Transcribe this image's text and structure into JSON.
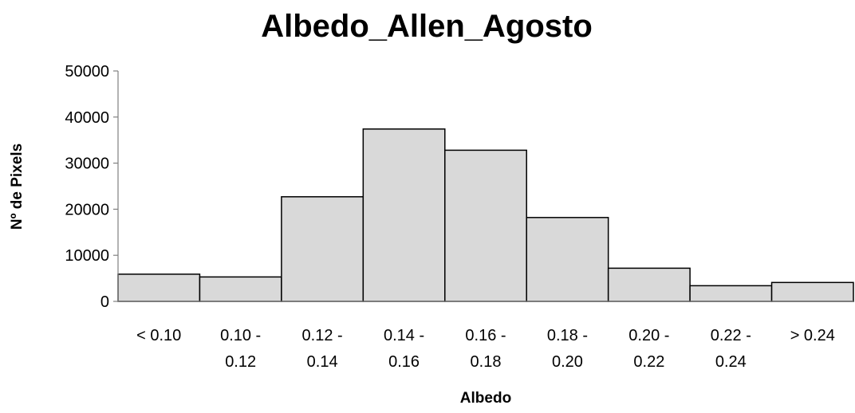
{
  "chart_data": {
    "type": "bar",
    "title": "Albedo_Allen_Agosto",
    "xlabel": "Albedo",
    "ylabel": "Nº de Pixels",
    "categories": [
      [
        "< 0.10"
      ],
      [
        "0.10 -",
        "0.12"
      ],
      [
        "0.12 -",
        "0.14"
      ],
      [
        "0.14 -",
        "0.16"
      ],
      [
        "0.16 -",
        "0.18"
      ],
      [
        "0.18 -",
        "0.20"
      ],
      [
        "0.20 -",
        "0.22"
      ],
      [
        "0.22 -",
        "0.24"
      ],
      [
        "> 0.24"
      ]
    ],
    "values": [
      5900,
      5300,
      22700,
      37400,
      32800,
      18200,
      7200,
      3400,
      4100
    ],
    "ylim": [
      0,
      50000
    ],
    "yticks": [
      "0",
      "10000",
      "20000",
      "30000",
      "40000",
      "50000"
    ],
    "grid": false,
    "legend": "none",
    "colors": {
      "bar_fill": "#d9d9d9",
      "bar_edge": "#000000",
      "axis": "#808080"
    }
  }
}
